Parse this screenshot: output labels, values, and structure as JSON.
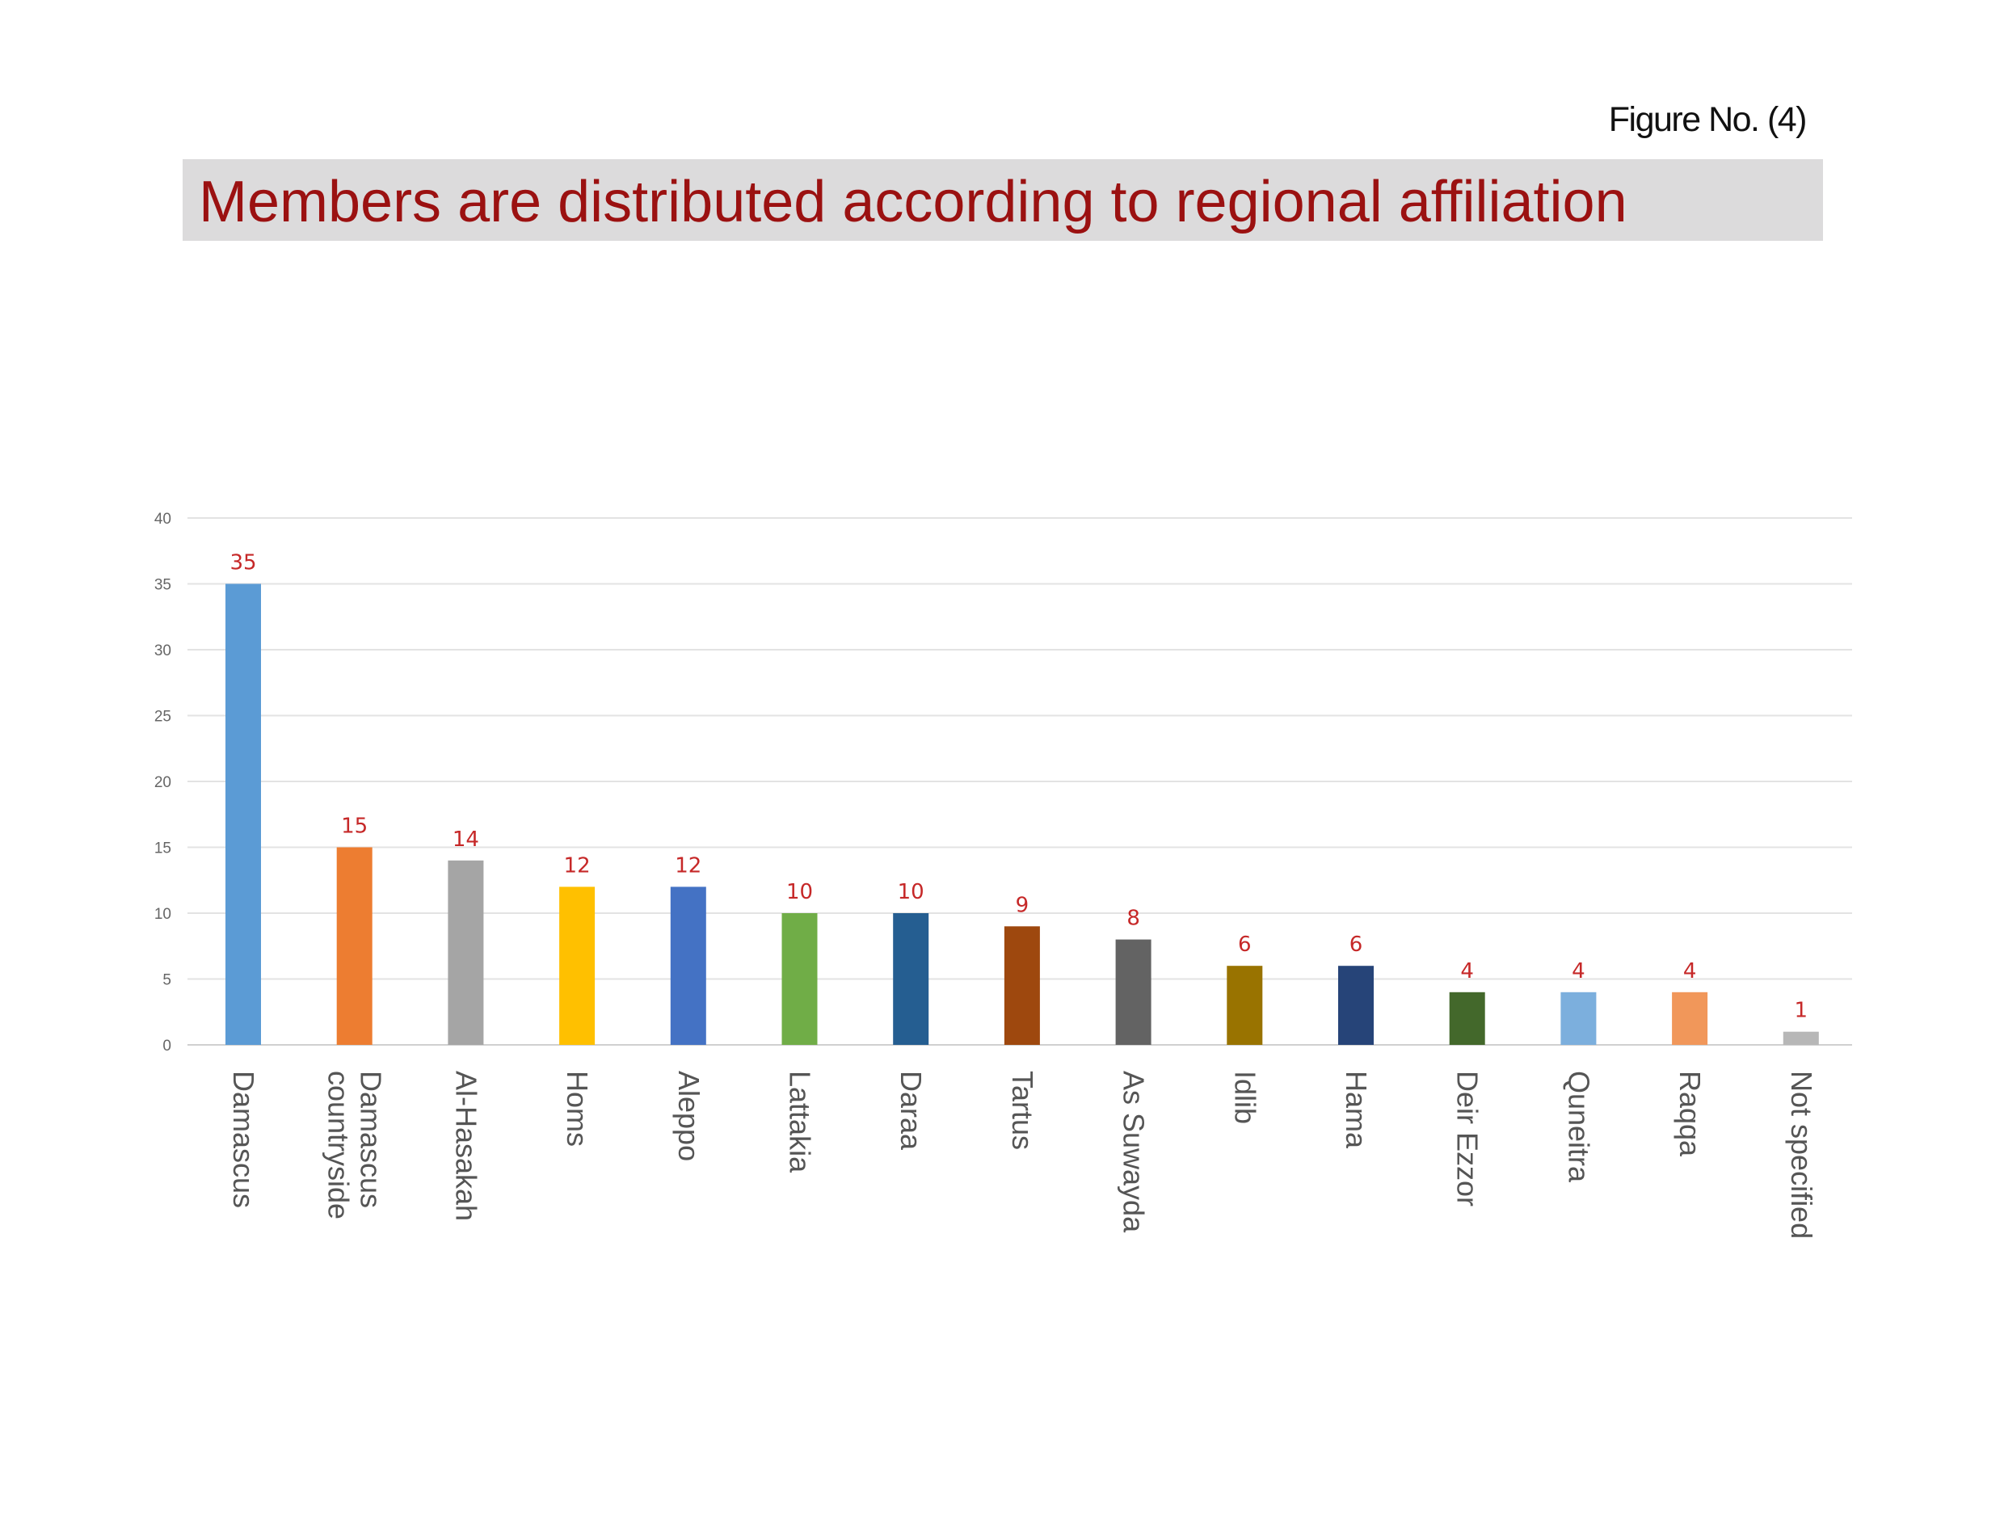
{
  "figure_label": "Figure No. (4)",
  "title": "Members are distributed according to regional affiliation",
  "chart_data": {
    "type": "bar",
    "title": "Members are distributed according to regional affiliation",
    "xlabel": "",
    "ylabel": "",
    "ylim": [
      0,
      40
    ],
    "yticks": [
      0,
      5,
      10,
      15,
      20,
      25,
      30,
      35,
      40
    ],
    "grid": true,
    "legend": "none",
    "categories": [
      [
        "Damascus"
      ],
      [
        "Damascus",
        "countryside"
      ],
      [
        "Al-Hasakah"
      ],
      [
        "Homs"
      ],
      [
        "Aleppo"
      ],
      [
        "Lattakia"
      ],
      [
        "Daraa"
      ],
      [
        "Tartus"
      ],
      [
        "As Suwayda"
      ],
      [
        "Idlib"
      ],
      [
        "Hama"
      ],
      [
        "Deir Ezzor"
      ],
      [
        "Quneitra"
      ],
      [
        "Raqqa"
      ],
      [
        "Not specified"
      ]
    ],
    "values": [
      35,
      15,
      14,
      12,
      12,
      10,
      10,
      9,
      8,
      6,
      6,
      4,
      4,
      4,
      1
    ],
    "colors": [
      "#5b9bd5",
      "#ed7d31",
      "#a5a5a5",
      "#ffc000",
      "#4472c4",
      "#70ad47",
      "#255e91",
      "#9e480e",
      "#636363",
      "#997300",
      "#264478",
      "#43682b",
      "#7cafdd",
      "#f1975a",
      "#b7b7b7"
    ],
    "data_label_color": "#c62828"
  }
}
